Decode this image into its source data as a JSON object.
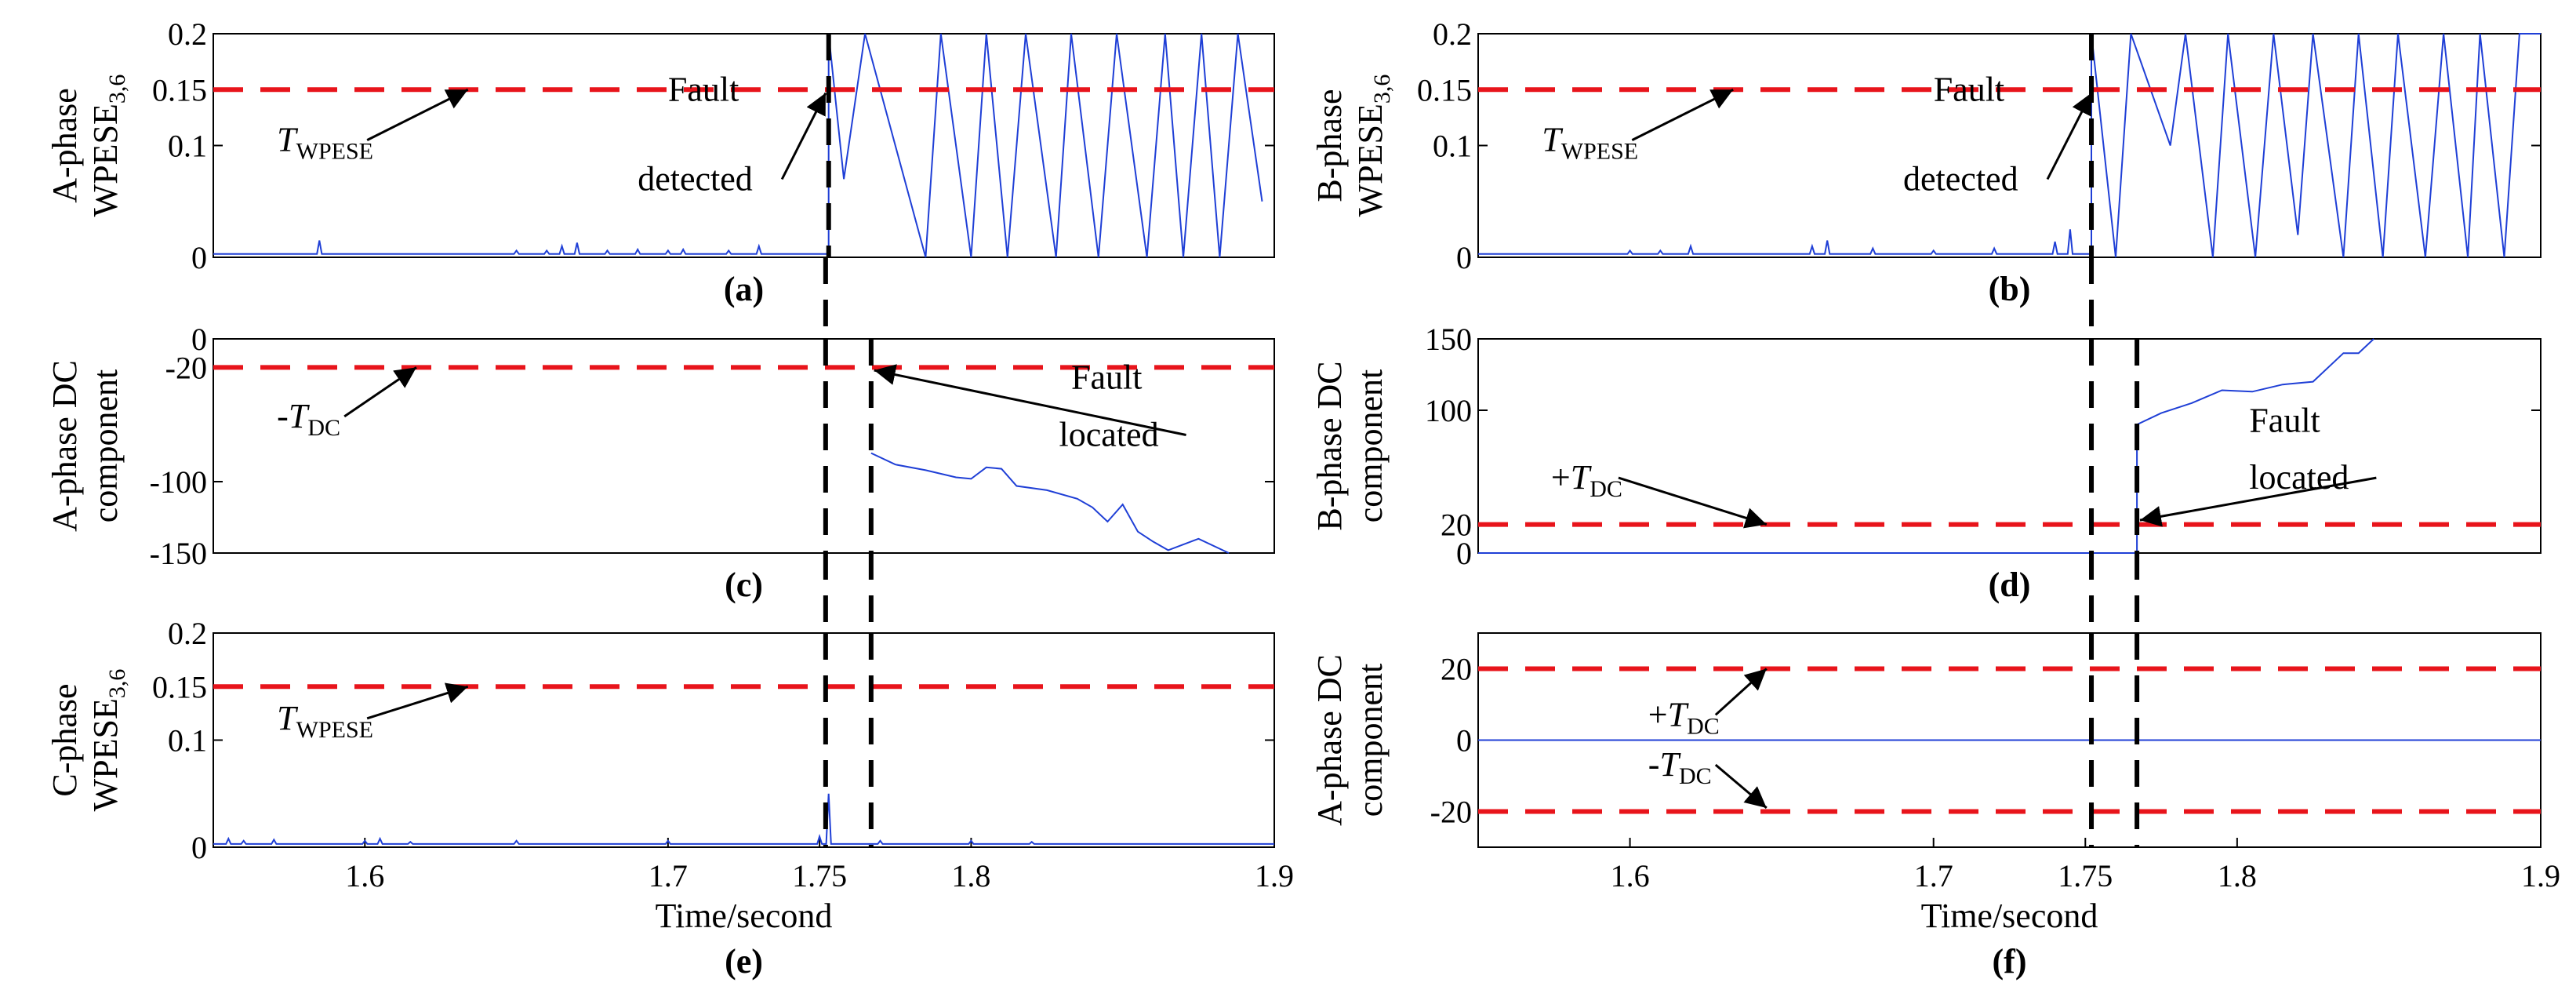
{
  "chart_data": [
    {
      "id": "a",
      "panel_label": "(a)",
      "type": "line",
      "ylabel_lines": [
        "A-phase",
        "WPESE3,6"
      ],
      "ylim": [
        0,
        0.2
      ],
      "xlim": [
        1.55,
        1.9
      ],
      "yticks": [
        0,
        0.1,
        0.15,
        0.2
      ],
      "ytick_labels": [
        "0",
        "0.1",
        "0.15",
        "0.2"
      ],
      "xticks": [],
      "xtick_labels": [],
      "xlabel": "",
      "signal": {
        "name": "A-phase WPESE",
        "baseline": 0.003,
        "spikes": [
          [
            1.585,
            0.015
          ],
          [
            1.65,
            0.006
          ],
          [
            1.66,
            0.006
          ],
          [
            1.665,
            0.01
          ],
          [
            1.67,
            0.013
          ],
          [
            1.68,
            0.006
          ],
          [
            1.69,
            0.007
          ],
          [
            1.7,
            0.006
          ],
          [
            1.705,
            0.007
          ],
          [
            1.72,
            0.006
          ],
          [
            1.73,
            0.01
          ]
        ],
        "fault_time": 1.753,
        "post_fault_segments": [
          [
            1.753,
            0.2
          ],
          [
            1.758,
            0.07
          ],
          [
            1.765,
            0.2
          ],
          [
            1.785,
            0.0
          ],
          [
            1.79,
            0.2
          ],
          [
            1.8,
            0.0
          ],
          [
            1.805,
            0.2
          ],
          [
            1.812,
            0.0
          ],
          [
            1.818,
            0.2
          ],
          [
            1.828,
            0.0
          ],
          [
            1.833,
            0.2
          ],
          [
            1.842,
            0.0
          ],
          [
            1.848,
            0.2
          ],
          [
            1.858,
            0.0
          ],
          [
            1.864,
            0.2
          ],
          [
            1.87,
            0.0
          ],
          [
            1.876,
            0.2
          ],
          [
            1.882,
            0.0
          ],
          [
            1.888,
            0.2
          ],
          [
            1.896,
            0.05
          ]
        ]
      },
      "threshold_lines": [
        {
          "y": 0.15,
          "color": "#e8141b"
        }
      ],
      "vlines": [
        {
          "x": 1.753,
          "color": "#000000"
        }
      ],
      "annotations": [
        {
          "parts": [
            {
              "t": "T",
              "i": true
            },
            {
              "t": "WPESE",
              "sub": true
            }
          ],
          "x": 1.571,
          "y": 0.095,
          "arrow_to": [
            1.634,
            0.15
          ]
        },
        {
          "parts": [
            {
              "t": "Fault"
            }
          ],
          "x": 1.7,
          "y": 0.14
        },
        {
          "parts": [
            {
              "t": "detected"
            }
          ],
          "x": 1.69,
          "y": 0.06,
          "arrow_to": [
            1.752,
            0.147
          ]
        }
      ]
    },
    {
      "id": "b",
      "panel_label": "(b)",
      "type": "line",
      "ylabel_lines": [
        "B-phase",
        "WPESE3,6"
      ],
      "ylim": [
        0,
        0.2
      ],
      "xlim": [
        1.55,
        1.9
      ],
      "yticks": [
        0,
        0.1,
        0.15,
        0.2
      ],
      "ytick_labels": [
        "0",
        "0.1",
        "0.15",
        "0.2"
      ],
      "xticks": [],
      "xtick_labels": [],
      "xlabel": "",
      "signal": {
        "name": "B-phase WPESE",
        "baseline": 0.003,
        "spikes": [
          [
            1.6,
            0.006
          ],
          [
            1.61,
            0.006
          ],
          [
            1.62,
            0.01
          ],
          [
            1.66,
            0.01
          ],
          [
            1.665,
            0.015
          ],
          [
            1.68,
            0.008
          ],
          [
            1.7,
            0.006
          ],
          [
            1.72,
            0.008
          ],
          [
            1.74,
            0.014
          ],
          [
            1.745,
            0.025
          ]
        ],
        "fault_time": 1.752,
        "post_fault_segments": [
          [
            1.752,
            0.2
          ],
          [
            1.76,
            0.0
          ],
          [
            1.765,
            0.2
          ],
          [
            1.778,
            0.1
          ],
          [
            1.783,
            0.2
          ],
          [
            1.792,
            0.0
          ],
          [
            1.797,
            0.2
          ],
          [
            1.806,
            0.0
          ],
          [
            1.812,
            0.2
          ],
          [
            1.82,
            0.02
          ],
          [
            1.825,
            0.2
          ],
          [
            1.835,
            0.0
          ],
          [
            1.84,
            0.2
          ],
          [
            1.848,
            0.0
          ],
          [
            1.853,
            0.2
          ],
          [
            1.862,
            0.0
          ],
          [
            1.868,
            0.2
          ],
          [
            1.876,
            0.0
          ],
          [
            1.88,
            0.2
          ],
          [
            1.888,
            0.0
          ],
          [
            1.893,
            0.2
          ],
          [
            1.9,
            0.2
          ]
        ]
      },
      "threshold_lines": [
        {
          "y": 0.15,
          "color": "#e8141b"
        }
      ],
      "vlines": [
        {
          "x": 1.752,
          "color": "#000000"
        }
      ],
      "annotations": [
        {
          "parts": [
            {
              "t": "T",
              "i": true
            },
            {
              "t": "WPESE",
              "sub": true
            }
          ],
          "x": 1.571,
          "y": 0.095,
          "arrow_to": [
            1.634,
            0.15
          ]
        },
        {
          "parts": [
            {
              "t": "Fault"
            }
          ],
          "x": 1.7,
          "y": 0.14
        },
        {
          "parts": [
            {
              "t": "detected"
            }
          ],
          "x": 1.69,
          "y": 0.06,
          "arrow_to": [
            1.752,
            0.147
          ]
        }
      ]
    },
    {
      "id": "c",
      "panel_label": "(c)",
      "type": "line",
      "ylabel_lines": [
        "A-phase DC",
        "component"
      ],
      "ylim": [
        -150,
        0
      ],
      "xlim": [
        1.55,
        1.9
      ],
      "yticks": [
        -150,
        -100,
        -20,
        0
      ],
      "ytick_labels": [
        "-150",
        "-100",
        "-20",
        "0"
      ],
      "xticks": [],
      "xtick_labels": [],
      "xlabel": "",
      "signal": {
        "name": "A-phase DC component",
        "points": [
          [
            1.767,
            -80
          ],
          [
            1.775,
            -88
          ],
          [
            1.785,
            -92
          ],
          [
            1.795,
            -97
          ],
          [
            1.8,
            -98
          ],
          [
            1.805,
            -90
          ],
          [
            1.81,
            -91
          ],
          [
            1.815,
            -103
          ],
          [
            1.825,
            -106
          ],
          [
            1.835,
            -112
          ],
          [
            1.84,
            -118
          ],
          [
            1.845,
            -128
          ],
          [
            1.85,
            -116
          ],
          [
            1.855,
            -135
          ],
          [
            1.86,
            -142
          ],
          [
            1.865,
            -148
          ],
          [
            1.875,
            -140
          ],
          [
            1.885,
            -150
          ]
        ]
      },
      "threshold_lines": [
        {
          "y": -20,
          "color": "#e8141b"
        }
      ],
      "vlines": [
        {
          "x": 1.752,
          "color": "#000000"
        },
        {
          "x": 1.767,
          "color": "#000000"
        }
      ],
      "annotations": [
        {
          "parts": [
            {
              "t": "-"
            },
            {
              "t": "T",
              "i": true
            },
            {
              "t": "DC",
              "sub": true
            }
          ],
          "x": 1.571,
          "y": -62,
          "arrow_to": [
            1.617,
            -20
          ]
        },
        {
          "parts": [
            {
              "t": "Fault"
            }
          ],
          "x": 1.833,
          "y": -35
        },
        {
          "parts": [
            {
              "t": "located"
            }
          ],
          "x": 1.829,
          "y": -75,
          "arrow_to": [
            1.768,
            -22
          ]
        }
      ]
    },
    {
      "id": "d",
      "panel_label": "(d)",
      "type": "line",
      "ylabel_lines": [
        "B-phase DC",
        "component"
      ],
      "ylim": [
        0,
        150
      ],
      "xlim": [
        1.55,
        1.9
      ],
      "yticks": [
        0,
        20,
        100,
        150
      ],
      "ytick_labels": [
        "0",
        "20",
        "100",
        "150"
      ],
      "xticks": [],
      "xtick_labels": [],
      "xlabel": "",
      "signal": {
        "name": "B-phase DC component",
        "points": [
          [
            1.55,
            0
          ],
          [
            1.767,
            0
          ],
          [
            1.767,
            90
          ],
          [
            1.775,
            98
          ],
          [
            1.785,
            105
          ],
          [
            1.795,
            114
          ],
          [
            1.805,
            113
          ],
          [
            1.815,
            118
          ],
          [
            1.825,
            120
          ],
          [
            1.835,
            140
          ],
          [
            1.84,
            140
          ],
          [
            1.845,
            150
          ]
        ]
      },
      "threshold_lines": [
        {
          "y": 20,
          "color": "#e8141b"
        }
      ],
      "vlines": [
        {
          "x": 1.752,
          "color": "#000000"
        },
        {
          "x": 1.767,
          "color": "#000000"
        }
      ],
      "annotations": [
        {
          "parts": [
            {
              "t": "+"
            },
            {
              "t": "T",
              "i": true
            },
            {
              "t": "DC",
              "sub": true
            }
          ],
          "x": 1.574,
          "y": 45,
          "arrow_to": [
            1.645,
            20
          ]
        },
        {
          "parts": [
            {
              "t": "Fault"
            }
          ],
          "x": 1.804,
          "y": 85
        },
        {
          "parts": [
            {
              "t": "located"
            }
          ],
          "x": 1.804,
          "y": 45,
          "arrow_to": [
            1.768,
            23
          ]
        }
      ]
    },
    {
      "id": "e",
      "panel_label": "(e)",
      "type": "line",
      "ylabel_lines": [
        "C-phase",
        "WPESE3,6"
      ],
      "ylim": [
        0,
        0.2
      ],
      "xlim": [
        1.55,
        1.9
      ],
      "yticks": [
        0,
        0.1,
        0.15,
        0.2
      ],
      "ytick_labels": [
        "0",
        "0.1",
        "0.15",
        "0.2"
      ],
      "xticks": [
        1.6,
        1.7,
        1.75,
        1.8,
        1.9
      ],
      "xtick_labels": [
        "1.6",
        "1.7",
        "1.75",
        "1.8",
        "1.9"
      ],
      "xlabel": "Time/second",
      "signal": {
        "name": "C-phase WPESE",
        "baseline": 0.003,
        "spikes": [
          [
            1.555,
            0.008
          ],
          [
            1.56,
            0.006
          ],
          [
            1.57,
            0.007
          ],
          [
            1.6,
            0.006
          ],
          [
            1.605,
            0.008
          ],
          [
            1.615,
            0.005
          ],
          [
            1.65,
            0.006
          ],
          [
            1.7,
            0.006
          ],
          [
            1.75,
            0.01
          ],
          [
            1.753,
            0.05
          ],
          [
            1.77,
            0.006
          ],
          [
            1.8,
            0.006
          ],
          [
            1.82,
            0.005
          ]
        ]
      },
      "threshold_lines": [
        {
          "y": 0.15,
          "color": "#e8141b"
        }
      ],
      "vlines": [
        {
          "x": 1.752,
          "color": "#000000"
        },
        {
          "x": 1.767,
          "color": "#000000"
        }
      ],
      "annotations": [
        {
          "parts": [
            {
              "t": "T",
              "i": true
            },
            {
              "t": "WPESE",
              "sub": true
            }
          ],
          "x": 1.571,
          "y": 0.11,
          "arrow_to": [
            1.634,
            0.15
          ]
        }
      ]
    },
    {
      "id": "f",
      "panel_label": "(f)",
      "type": "line",
      "ylabel_lines": [
        "A-phase DC",
        "component"
      ],
      "ylim": [
        -30,
        30
      ],
      "xlim": [
        1.55,
        1.9
      ],
      "yticks": [
        -20,
        0,
        20
      ],
      "ytick_labels": [
        "-20",
        "0",
        "20"
      ],
      "xticks": [
        1.6,
        1.7,
        1.75,
        1.8,
        1.9
      ],
      "xtick_labels": [
        "1.6",
        "1.7",
        "1.75",
        "1.8",
        "1.9"
      ],
      "xlabel": "Time/second",
      "signal": {
        "name": "A-phase DC component (f)",
        "points": [
          [
            1.55,
            0
          ],
          [
            1.9,
            0
          ]
        ]
      },
      "threshold_lines": [
        {
          "y": 20,
          "color": "#e8141b"
        },
        {
          "y": -20,
          "color": "#e8141b"
        }
      ],
      "vlines": [
        {
          "x": 1.752,
          "color": "#000000"
        },
        {
          "x": 1.767,
          "color": "#000000"
        }
      ],
      "annotations": [
        {
          "parts": [
            {
              "t": "+"
            },
            {
              "t": "T",
              "i": true
            },
            {
              "t": "DC",
              "sub": true
            }
          ],
          "x": 1.606,
          "y": 4,
          "arrow_to": [
            1.645,
            20
          ]
        },
        {
          "parts": [
            {
              "t": "-"
            },
            {
              "t": "T",
              "i": true
            },
            {
              "t": "DC",
              "sub": true
            }
          ],
          "x": 1.606,
          "y": -10,
          "arrow_to": [
            1.645,
            -19
          ]
        }
      ]
    }
  ],
  "colors": {
    "signal": "#1f3fd6",
    "threshold": "#e8141b",
    "marker": "#000000"
  }
}
